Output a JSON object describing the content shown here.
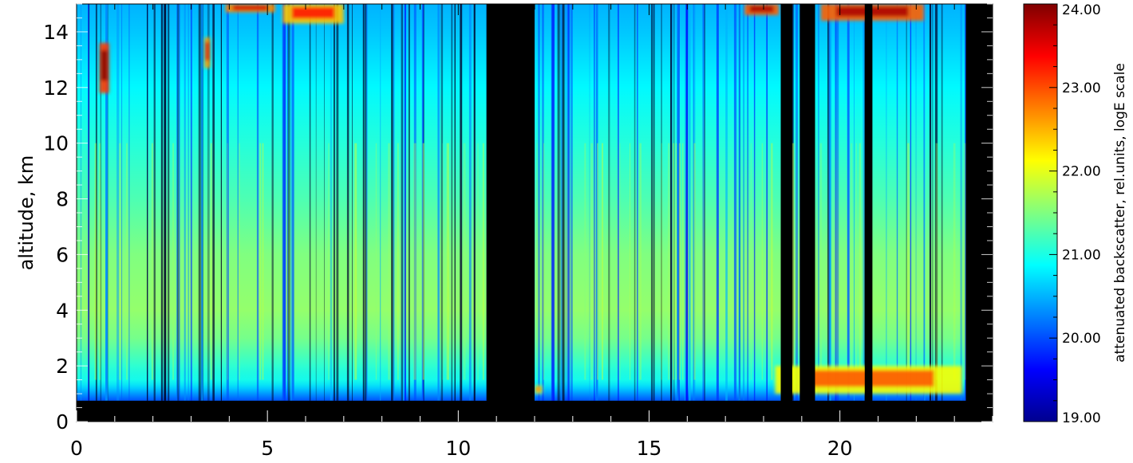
{
  "chart_data": {
    "type": "heatmap",
    "title": "",
    "xlabel": "",
    "ylabel": "altitude, km",
    "xlim": [
      0,
      24
    ],
    "ylim": [
      0,
      15
    ],
    "x_ticks": [
      0,
      5,
      10,
      15,
      20
    ],
    "x_tick_labels": [
      "0",
      "5",
      "10",
      "15",
      "20"
    ],
    "y_ticks": [
      0,
      2,
      4,
      6,
      8,
      10,
      12,
      14
    ],
    "y_tick_labels": [
      "0",
      "2",
      "4",
      "6",
      "8",
      "10",
      "12",
      "14"
    ],
    "colorbar": {
      "label": "attenuated backscatter, rel.units, logE scale",
      "range": [
        19,
        24
      ],
      "ticks": [
        19,
        20,
        21,
        22,
        23,
        24
      ],
      "tick_labels": [
        "19.00",
        "20.00",
        "21.00",
        "22.00",
        "23.00",
        "24.00"
      ],
      "colormap": "rainbow",
      "colors": [
        "#00008f",
        "#0000ff",
        "#0080ff",
        "#00ffff",
        "#80ff80",
        "#ffff00",
        "#ff8000",
        "#ff0000",
        "#800000"
      ]
    },
    "grid": false,
    "no_data_color": "#000000",
    "no_data_intervals_hours": [
      [
        10.75,
        12.0
      ],
      [
        18.45,
        18.75
      ],
      [
        18.95,
        19.35
      ],
      [
        20.65,
        20.85
      ],
      [
        23.3,
        24.0
      ]
    ],
    "surface_layer_km": [
      0,
      0.75
    ],
    "boundary_layer_km": [
      0.75,
      2.0
    ],
    "background_profile": [
      {
        "altitude_km": 0.8,
        "value": 20.3
      },
      {
        "altitude_km": 1.3,
        "value": 20.8
      },
      {
        "altitude_km": 2.0,
        "value": 21.1
      },
      {
        "altitude_km": 3.0,
        "value": 21.45
      },
      {
        "altitude_km": 4.0,
        "value": 21.6
      },
      {
        "altitude_km": 6.0,
        "value": 21.5
      },
      {
        "altitude_km": 8.0,
        "value": 21.25
      },
      {
        "altitude_km": 10.0,
        "value": 21.05
      },
      {
        "altitude_km": 12.0,
        "value": 20.85
      },
      {
        "altitude_km": 14.0,
        "value": 20.6
      },
      {
        "altitude_km": 15.0,
        "value": 20.5
      }
    ],
    "cloud_features": [
      {
        "x_hours": [
          0.6,
          0.85
        ],
        "altitude_km": [
          11.8,
          13.6
        ],
        "value": 24.0
      },
      {
        "x_hours": [
          3.35,
          3.5
        ],
        "altitude_km": [
          12.7,
          13.8
        ],
        "value": 23.5
      },
      {
        "x_hours": [
          5.4,
          7.0
        ],
        "altitude_km": [
          14.3,
          15.0
        ],
        "value": 23.3
      },
      {
        "x_hours": [
          3.9,
          5.2
        ],
        "altitude_km": [
          14.7,
          15.0
        ],
        "value": 23.6
      },
      {
        "x_hours": [
          17.5,
          18.4
        ],
        "altitude_km": [
          14.6,
          15.0
        ],
        "value": 23.8
      },
      {
        "x_hours": [
          19.5,
          22.2
        ],
        "altitude_km": [
          14.4,
          15.0
        ],
        "value": 23.8
      },
      {
        "x_hours": [
          18.3,
          23.2
        ],
        "altitude_km": [
          1.0,
          2.0
        ],
        "value": 23.0
      },
      {
        "x_hours": [
          12.0,
          12.2
        ],
        "altitude_km": [
          1.0,
          1.3
        ],
        "value": 22.8
      }
    ]
  }
}
